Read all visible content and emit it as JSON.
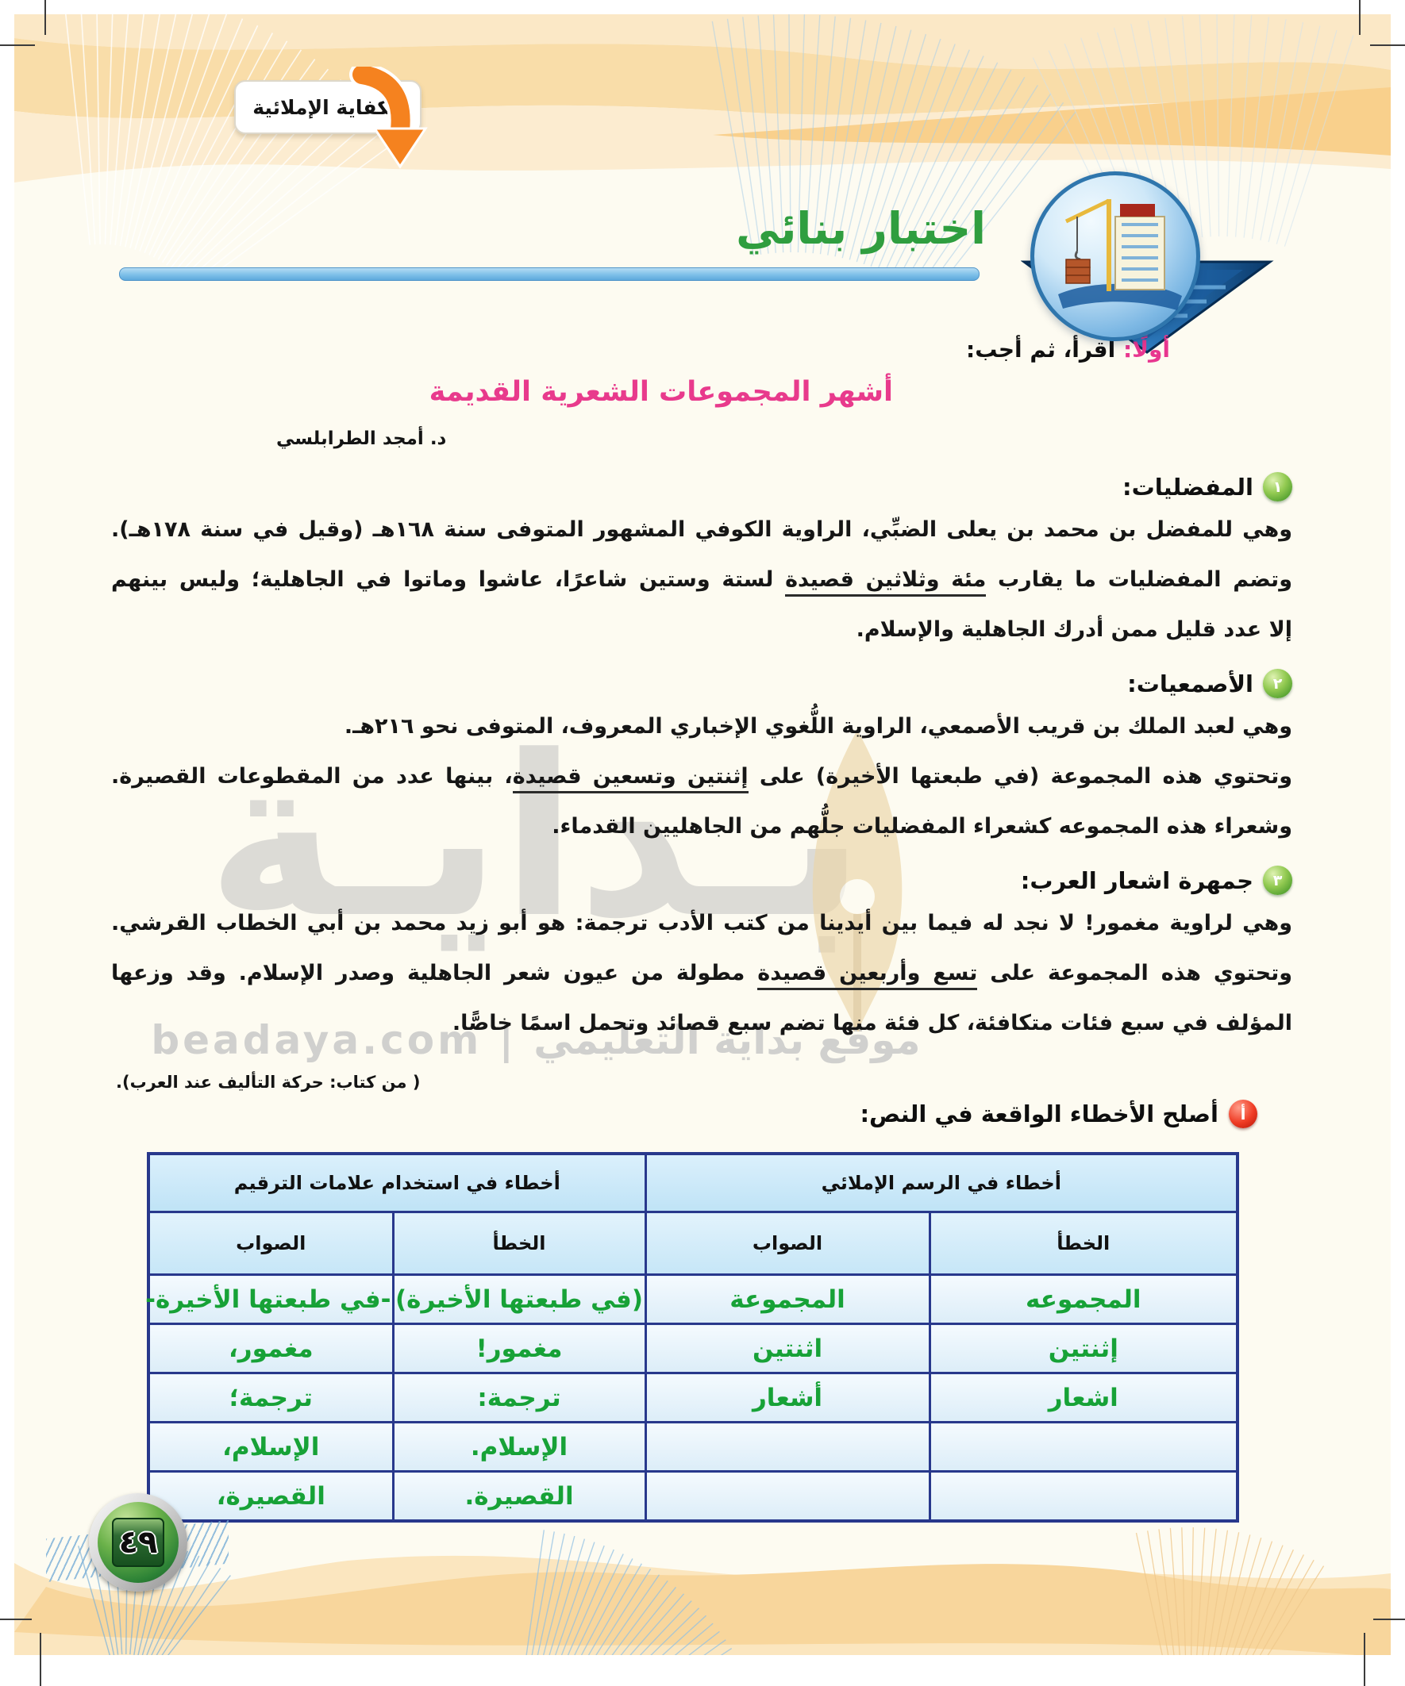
{
  "page": {
    "competency_badge": "الكفاية الإملائية",
    "test_title": "اختبار بنائي",
    "instruction_prefix": "أولًا:",
    "instruction_rest": " اقرأ، ثم أجب:",
    "article_title": "أشهر المجموعات الشعرية القديمة",
    "author": "د. أمجد الطرابلسي",
    "source_note": "( من كتاب: حركة التأليف عند العرب).",
    "page_number": "٤٩"
  },
  "sections": [
    {
      "num": "١",
      "title": "المفضليات:",
      "lines": [
        {
          "full": true,
          "segments": [
            {
              "t": "وهي للمفضل بن محمد بن يعلى الضبِّي، الراوية الكوفي المشهور المتوفى سنة ١٦٨هـ (وقيل في سنة ١٧٨هـ)."
            }
          ]
        },
        {
          "full": true,
          "segments": [
            {
              "t": "وتضم المفضليات ما يقارب "
            },
            {
              "t": "مئة وثلاثين قصيدة",
              "u": true
            },
            {
              "t": " لستة وستين شاعرًا، عاشوا وماتوا في الجاهلية؛ وليس بينهم"
            }
          ]
        },
        {
          "full": false,
          "segments": [
            {
              "t": "إلا عدد قليل ممن أدرك الجاهلية والإسلام."
            }
          ]
        }
      ]
    },
    {
      "num": "٢",
      "title": "الأصمعيات:",
      "lines": [
        {
          "full": false,
          "segments": [
            {
              "t": "وهي لعبد الملك بن قريب الأصمعي، الراوية اللُّغوي الإخباري المعروف، المتوفى نحو ٢١٦هـ."
            }
          ]
        },
        {
          "full": true,
          "segments": [
            {
              "t": "وتحتوي هذه المجموعة (في طبعتها الأخيرة) على "
            },
            {
              "t": "إثنتين وتسعين قصيدة",
              "u": true
            },
            {
              "t": "، بينها عدد من المقطوعات القصيرة."
            }
          ]
        },
        {
          "full": false,
          "segments": [
            {
              "t": "وشعراء هذه المجموعه كشعراء المفضليات جلُّهم من الجاهليين القدماء."
            }
          ]
        }
      ]
    },
    {
      "num": "٣",
      "title": "جمهرة اشعار العرب:",
      "lines": [
        {
          "full": true,
          "segments": [
            {
              "t": "وهي لراوية مغمور! لا نجد له فيما بين أيدينا من كتب الأدب ترجمة: هو أبو زيد محمد بن أبي الخطاب القرشي."
            }
          ]
        },
        {
          "full": true,
          "segments": [
            {
              "t": "وتحتوي هذه المجموعة على "
            },
            {
              "t": "تسع وأربعين قصيدة",
              "u": true
            },
            {
              "t": " مطولة من عيون شعر الجاهلية وصدر الإسلام. وقد وزعها"
            }
          ]
        },
        {
          "full": false,
          "segments": [
            {
              "t": "المؤلف في سبع فئات متكافئة، كل فئة منها تضم سبع قصائد وتحمل اسمًا خاصًّا."
            }
          ]
        }
      ]
    }
  ],
  "question": {
    "marker": "أ",
    "text": "أصلح الأخطاء الواقعة في النص:"
  },
  "table": {
    "group_headers": [
      "أخطاء في الرسم الإملائي",
      "أخطاء في استخدام علامات الترقيم"
    ],
    "col_headers": [
      "الخطأ",
      "الصواب",
      "الخطأ",
      "الصواب"
    ],
    "rows": [
      [
        "المجموعه",
        "المجموعة",
        "(في طبعتها الأخيرة)",
        "-في طبعتها الأخيرة-"
      ],
      [
        "إثنتين",
        "اثنتين",
        "مغمور!",
        "مغمور،"
      ],
      [
        "اشعار",
        "أشعار",
        "ترجمة:",
        "ترجمة؛"
      ],
      [
        "",
        "",
        "الإسلام.",
        "الإسلام،"
      ],
      [
        "",
        "",
        "القصيرة.",
        "القصيرة،"
      ]
    ]
  },
  "watermark": {
    "big": "بـدايـة",
    "sub": "beadaya.com | موقع بداية التعليمي"
  },
  "colors": {
    "title_green": "#2f9e3f",
    "pink": "#e83a8c",
    "answer_green": "#17a237",
    "table_border": "#28388c",
    "bar_blue": "#7ec0e9",
    "arrow_orange": "#f5821f"
  }
}
